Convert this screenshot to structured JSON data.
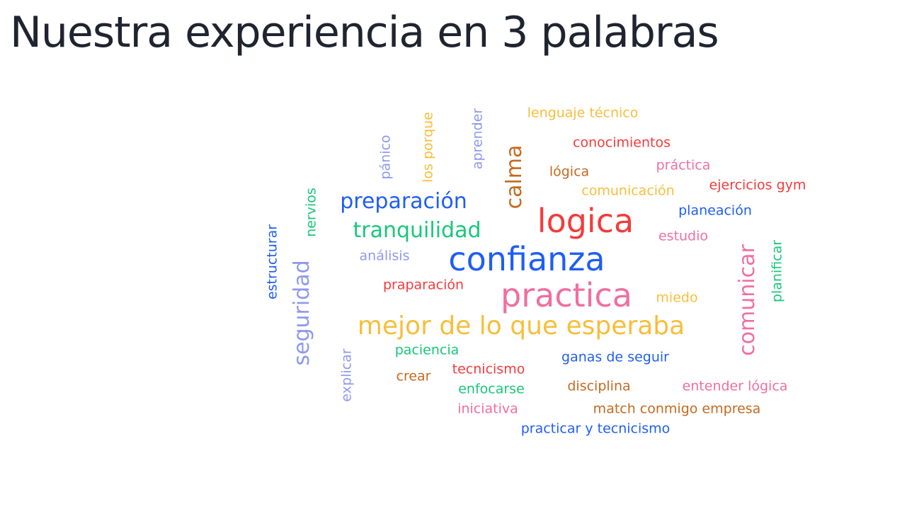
{
  "slide": {
    "title": "Nuestra experiencia en 3 palabras"
  },
  "palette": {
    "blue": "#1f5ef5",
    "red": "#f43b3b",
    "pink": "#f06fa0",
    "yellow": "#f7be3a",
    "green": "#19c77a",
    "brown": "#c46a1e",
    "lavender": "#8f98ee"
  },
  "wordcloud": {
    "words": [
      {
        "text": "lenguaje técnico",
        "color": "yellow"
      },
      {
        "text": "conocimientos",
        "color": "red"
      },
      {
        "text": "práctica",
        "color": "pink"
      },
      {
        "text": "lógica",
        "color": "brown"
      },
      {
        "text": "ejercicios gym",
        "color": "red"
      },
      {
        "text": "comunicación",
        "color": "yellow"
      },
      {
        "text": "planeación",
        "color": "blue"
      },
      {
        "text": "preparación",
        "color": "blue"
      },
      {
        "text": "logica",
        "color": "red"
      },
      {
        "text": "tranquilidad",
        "color": "green"
      },
      {
        "text": "estudio",
        "color": "pink"
      },
      {
        "text": "análisis",
        "color": "lavender"
      },
      {
        "text": "confianza",
        "color": "blue"
      },
      {
        "text": "praparación",
        "color": "red"
      },
      {
        "text": "practica",
        "color": "pink"
      },
      {
        "text": "miedo",
        "color": "yellow"
      },
      {
        "text": "mejor de lo que esperaba",
        "color": "yellow"
      },
      {
        "text": "paciencia",
        "color": "green"
      },
      {
        "text": "ganas de seguir",
        "color": "blue"
      },
      {
        "text": "crear",
        "color": "brown"
      },
      {
        "text": "tecnicismo",
        "color": "red"
      },
      {
        "text": "enfocarse",
        "color": "green"
      },
      {
        "text": "disciplina",
        "color": "brown"
      },
      {
        "text": "entender lógica",
        "color": "pink"
      },
      {
        "text": "iniciativa",
        "color": "pink"
      },
      {
        "text": "match conmigo empresa",
        "color": "brown"
      },
      {
        "text": "practicar y tecnicismo",
        "color": "blue"
      },
      {
        "text": "pánico",
        "color": "lavender"
      },
      {
        "text": "los porque",
        "color": "yellow"
      },
      {
        "text": "aprender",
        "color": "lavender"
      },
      {
        "text": "calma",
        "color": "brown"
      },
      {
        "text": "nervios",
        "color": "green"
      },
      {
        "text": "estructurar",
        "color": "blue"
      },
      {
        "text": "seguridad",
        "color": "lavender"
      },
      {
        "text": "explicar",
        "color": "lavender"
      },
      {
        "text": "comunicar",
        "color": "pink"
      },
      {
        "text": "planificar",
        "color": "green"
      }
    ]
  }
}
